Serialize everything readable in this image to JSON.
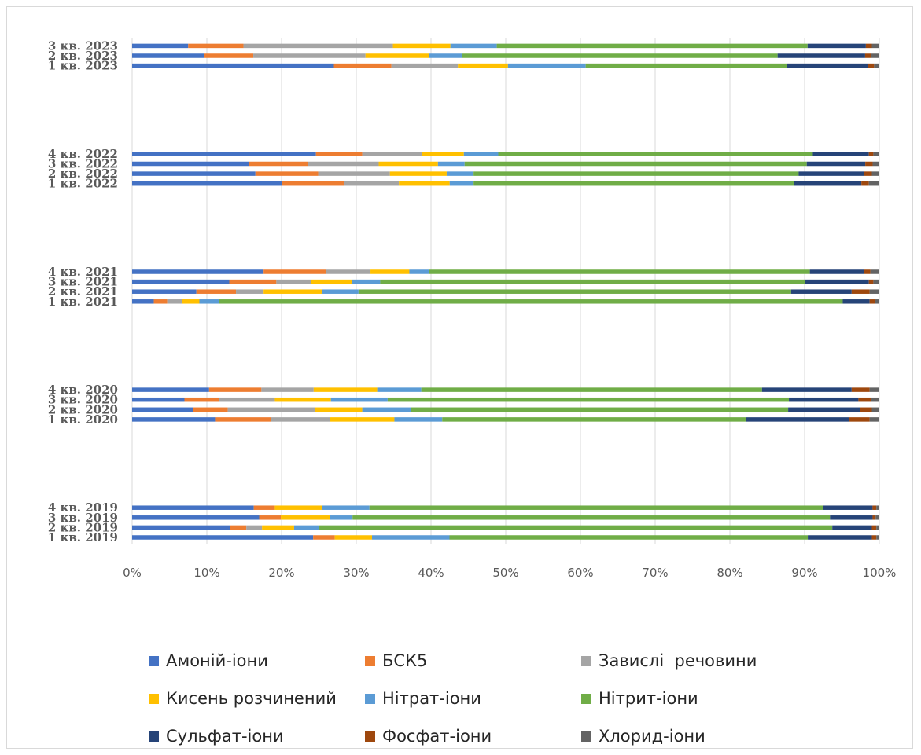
{
  "chart_data": {
    "type": "bar",
    "orientation": "horizontal",
    "stacked": "percent",
    "xlim": [
      0,
      100
    ],
    "x_ticks": [
      "0%",
      "10%",
      "20%",
      "30%",
      "40%",
      "50%",
      "60%",
      "70%",
      "80%",
      "90%",
      "100%"
    ],
    "grid": "vertical",
    "legend_position": "bottom",
    "groups": [
      {
        "categories": [
          "1 кв. 2019",
          "2 кв. 2019",
          "3 кв. 2019",
          "4 кв. 2019"
        ]
      },
      {
        "categories": [
          "1 кв. 2020",
          "2 кв. 2020",
          "3 кв. 2020",
          "4 кв. 2020"
        ]
      },
      {
        "categories": [
          "1 кв. 2021",
          "2 кв. 2021",
          "3 кв. 2021",
          "4 кв. 2021"
        ]
      },
      {
        "categories": [
          "1 кв. 2022",
          "2 кв. 2022",
          "3 кв. 2022",
          "4 кв. 2022"
        ]
      },
      {
        "categories": [
          "1 кв. 2023",
          "2 кв. 2023",
          "3 кв. 2023"
        ]
      }
    ],
    "series": [
      {
        "name": "Амоній-іони",
        "color": "#4472c4",
        "values": [
          24.3,
          13.1,
          17.0,
          16.2,
          11.1,
          8.2,
          7.0,
          10.3,
          2.9,
          8.6,
          13.0,
          17.6,
          20.0,
          16.5,
          15.8,
          24.6,
          27.0,
          9.6,
          7.5
        ]
      },
      {
        "name": "БСК5",
        "color": "#ed7d31",
        "values": [
          2.9,
          2.2,
          2.9,
          2.8,
          7.5,
          4.6,
          4.6,
          7.0,
          1.8,
          5.3,
          6.3,
          8.3,
          8.4,
          8.4,
          7.9,
          6.2,
          7.7,
          6.6,
          7.4
        ]
      },
      {
        "name": "Завислі  речовини",
        "color": "#a5a5a5",
        "values": [
          0.0,
          2.1,
          0.0,
          0.0,
          7.9,
          11.7,
          7.5,
          7.0,
          2.0,
          3.7,
          4.6,
          6.0,
          7.3,
          9.6,
          9.6,
          8.0,
          8.9,
          15.0,
          20.0
        ]
      },
      {
        "name": "Кисень розчинений",
        "color": "#ffc000",
        "values": [
          5.0,
          4.3,
          6.6,
          6.3,
          8.6,
          6.3,
          7.5,
          8.5,
          2.3,
          7.8,
          5.5,
          5.2,
          6.8,
          7.6,
          8.0,
          5.6,
          6.7,
          8.5,
          7.7
        ]
      },
      {
        "name": "Нітрат-іони",
        "color": "#5b9bd5",
        "values": [
          10.4,
          3.3,
          3.0,
          6.3,
          6.4,
          6.5,
          7.6,
          5.9,
          2.6,
          4.9,
          3.8,
          2.6,
          3.2,
          3.6,
          3.6,
          4.6,
          10.4,
          4.4,
          6.2
        ]
      },
      {
        "name": "Нітрит-іони",
        "color": "#70ad47",
        "values": [
          48.1,
          68.8,
          63.9,
          60.4,
          40.7,
          50.5,
          53.7,
          45.6,
          83.5,
          57.9,
          56.8,
          51.0,
          42.9,
          43.5,
          46.2,
          42.1,
          26.9,
          42.2,
          41.6
        ]
      },
      {
        "name": "Сульфат-іони",
        "color": "#264478",
        "values": [
          8.6,
          5.3,
          5.7,
          6.6,
          13.8,
          9.6,
          9.3,
          12.0,
          3.6,
          8.1,
          8.6,
          7.2,
          9.0,
          8.7,
          7.9,
          7.5,
          10.9,
          11.7,
          7.8
        ]
      },
      {
        "name": "Фосфат-іони",
        "color": "#9e480e",
        "values": [
          0.6,
          0.6,
          0.4,
          0.5,
          2.7,
          1.6,
          1.7,
          2.4,
          0.7,
          2.4,
          0.6,
          0.9,
          1.0,
          1.1,
          1.0,
          0.6,
          0.8,
          0.8,
          0.8
        ]
      },
      {
        "name": "Хлорид-іони",
        "color": "#636363",
        "values": [
          0.4,
          0.4,
          0.5,
          0.4,
          1.3,
          1.0,
          1.1,
          1.3,
          0.6,
          1.3,
          0.8,
          1.2,
          1.4,
          1.0,
          0.9,
          0.8,
          0.7,
          1.1,
          1.0
        ]
      }
    ]
  },
  "legend": {
    "rows": [
      [
        {
          "label": "Амоній-іони",
          "color": "#4472c4"
        },
        {
          "label": "БСК5",
          "color": "#ed7d31"
        },
        {
          "label": "Завислі  речовини",
          "color": "#a5a5a5"
        }
      ],
      [
        {
          "label": "Кисень розчинений",
          "color": "#ffc000"
        },
        {
          "label": "Нітрат-іони",
          "color": "#5b9bd5"
        },
        {
          "label": "Нітрит-іони",
          "color": "#70ad47"
        }
      ],
      [
        {
          "label": "Сульфат-іони",
          "color": "#264478"
        },
        {
          "label": "Фосфат-іони",
          "color": "#9e480e"
        },
        {
          "label": "Хлорид-іони",
          "color": "#636363"
        }
      ]
    ]
  }
}
